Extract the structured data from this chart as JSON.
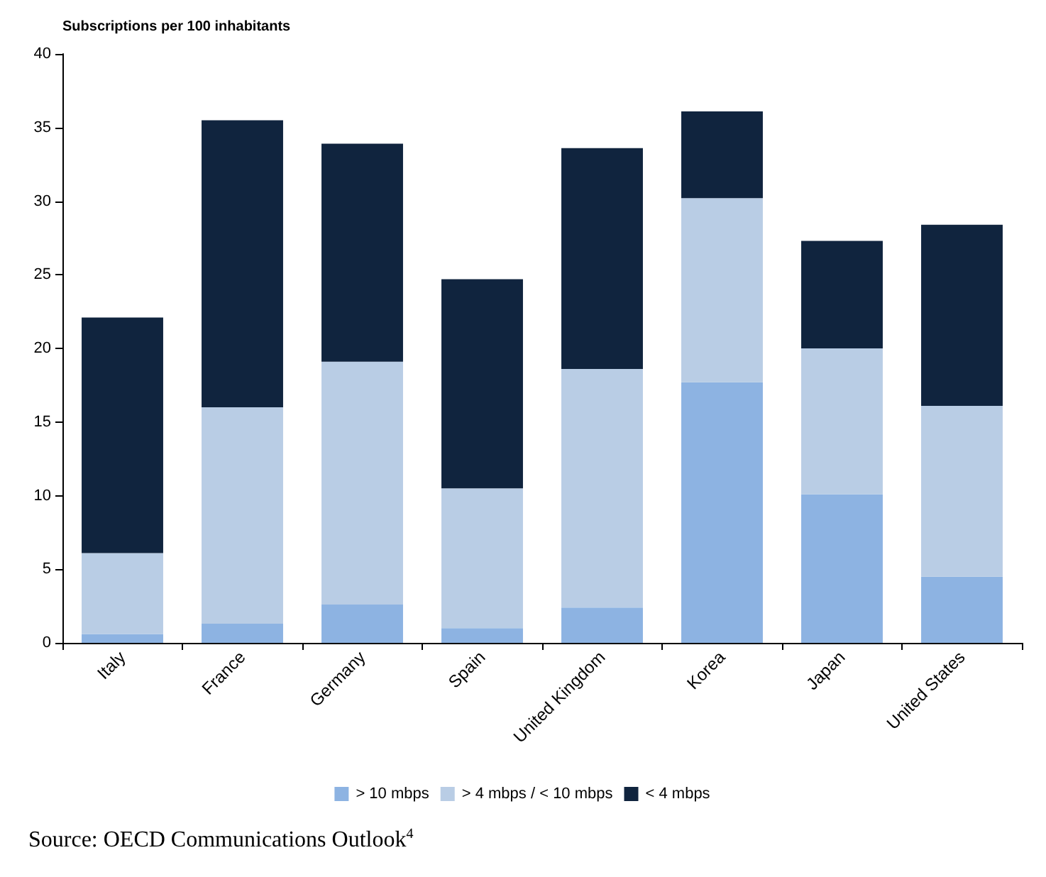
{
  "chart_data": {
    "type": "bar",
    "stacked": true,
    "ylabel": "Subscriptions per 100 inhabitants",
    "categories": [
      "Italy",
      "France",
      "Germany",
      "Spain",
      "United Kingdom",
      "Korea",
      "Japan",
      "United States"
    ],
    "series": [
      {
        "name": "> 10 mbps",
        "color": "#8db3e2",
        "values": [
          0.6,
          1.3,
          2.6,
          1.0,
          2.4,
          17.7,
          10.1,
          4.5
        ]
      },
      {
        "name": "> 4 mbps / < 10 mbps",
        "color": "#b9cde5",
        "values": [
          5.5,
          14.7,
          16.5,
          9.5,
          16.2,
          12.5,
          9.9,
          11.6
        ]
      },
      {
        "name": "< 4 mbps",
        "color": "#10243e",
        "values": [
          16.0,
          19.5,
          14.8,
          14.2,
          15.0,
          5.9,
          7.3,
          12.3
        ]
      }
    ],
    "ylim": [
      0,
      40
    ],
    "yticks": [
      0,
      5,
      10,
      15,
      20,
      25,
      30,
      35,
      40
    ],
    "grid": false,
    "legend": "bottom",
    "annotations": [
      "Source: OECD Communications Outlook$^{4}$"
    ]
  }
}
